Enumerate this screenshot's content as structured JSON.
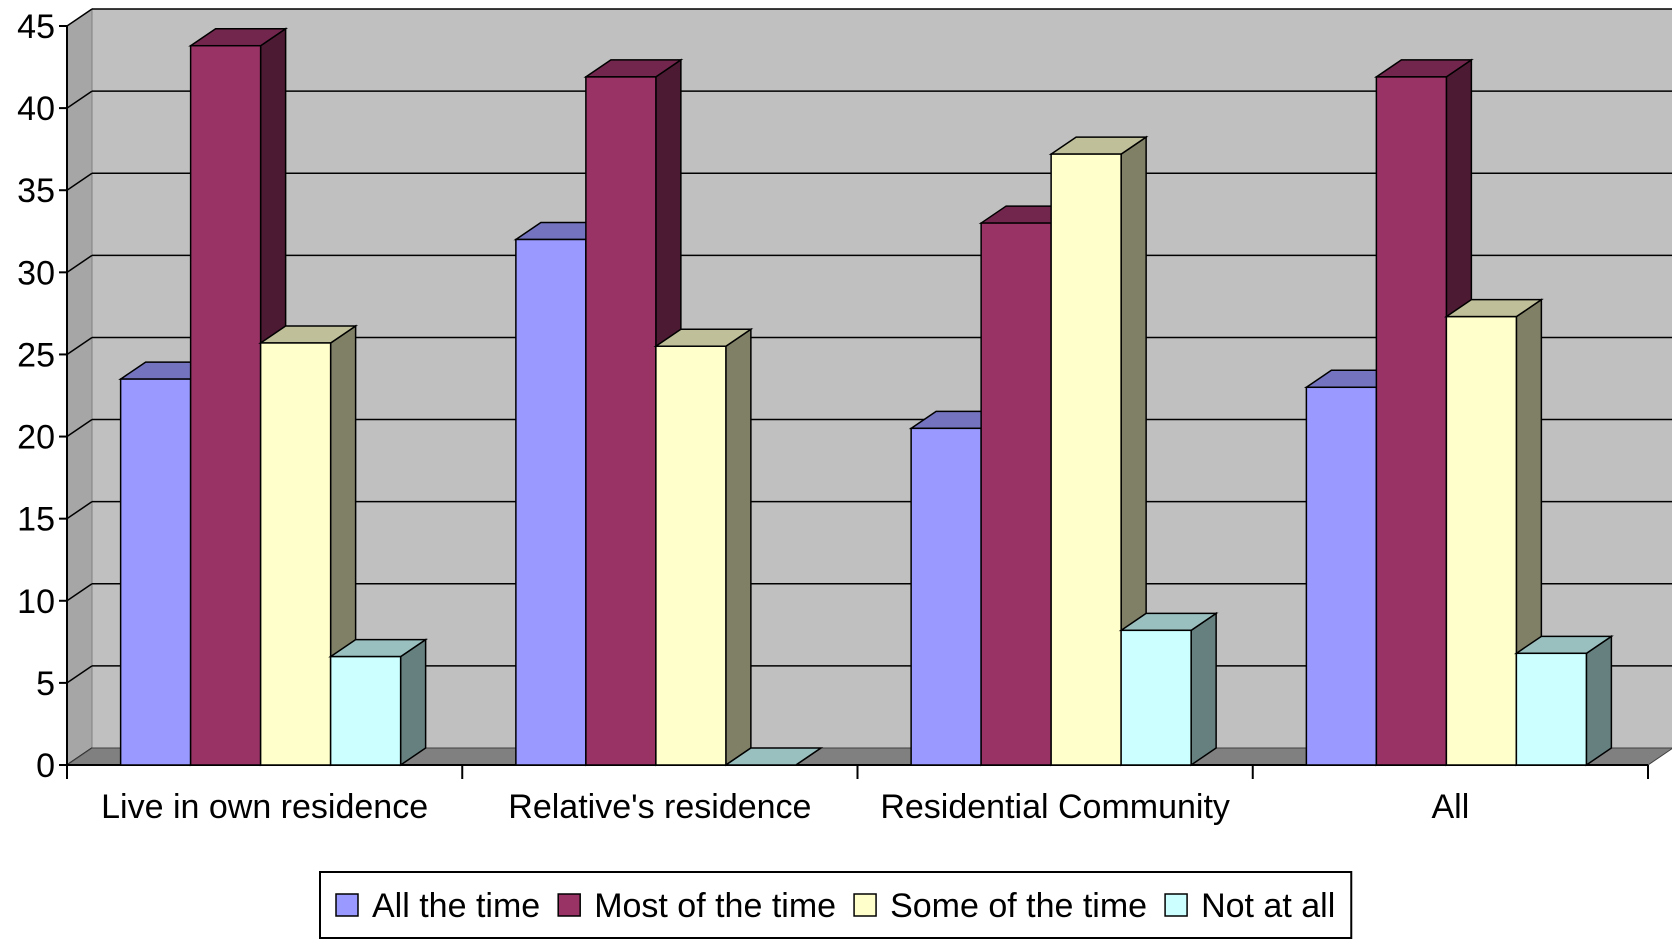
{
  "chart_data": {
    "type": "bar",
    "title": "",
    "xlabel": "",
    "ylabel": "",
    "categories": [
      "Live in own residence",
      "Relative's residence",
      "Residential Community",
      "All"
    ],
    "series": [
      {
        "name": "All the time",
        "values": [
          23.5,
          32.0,
          20.5,
          23.0
        ],
        "color": "#9999FF"
      },
      {
        "name": "Most of the time",
        "values": [
          43.8,
          41.9,
          33.0,
          41.9
        ],
        "color": "#993366"
      },
      {
        "name": "Some of the time",
        "values": [
          25.7,
          25.5,
          37.2,
          27.3
        ],
        "color": "#FFFFCC"
      },
      {
        "name": "Not at all",
        "values": [
          6.6,
          0.0,
          8.2,
          6.8
        ],
        "color": "#CCFFFF"
      }
    ],
    "ylim": [
      0,
      45
    ],
    "yticks": [
      0,
      5,
      10,
      15,
      20,
      25,
      30,
      35,
      40,
      45
    ],
    "grid": true,
    "legend": "bottom",
    "style": "3d-clustered-column",
    "colors": {
      "wall": "#C0C0C0",
      "floor": "#808080",
      "gridline": "#000000"
    }
  }
}
